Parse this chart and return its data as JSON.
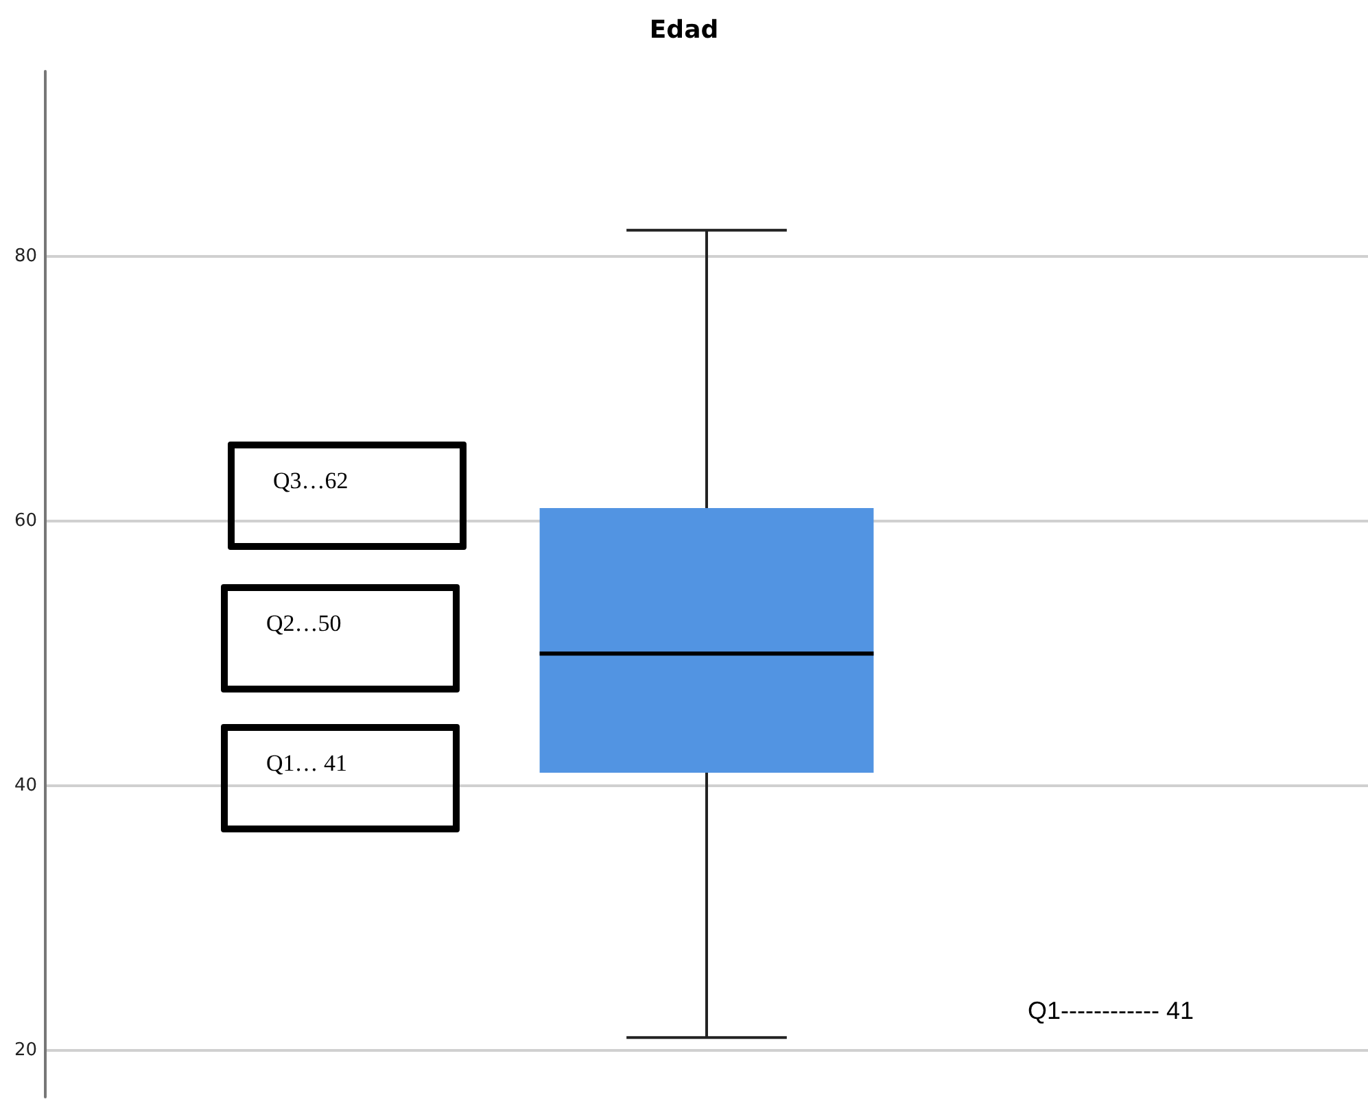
{
  "chart_data": {
    "type": "box",
    "title": "Edad",
    "categories": [
      null
    ],
    "series": [
      {
        "color": "#5294e2",
        "boxes": [
          {
            "low": 21,
            "q1": 41,
            "median": 50,
            "q3": 61,
            "high": 82
          }
        ]
      }
    ],
    "ylim": [
      16.5,
      94
    ],
    "yticks": [
      20,
      40,
      60,
      80
    ],
    "grid": "y",
    "annotations": [
      "Q3…62",
      "Q2…50",
      "Q1… 41",
      "Q1------------ 41"
    ]
  }
}
